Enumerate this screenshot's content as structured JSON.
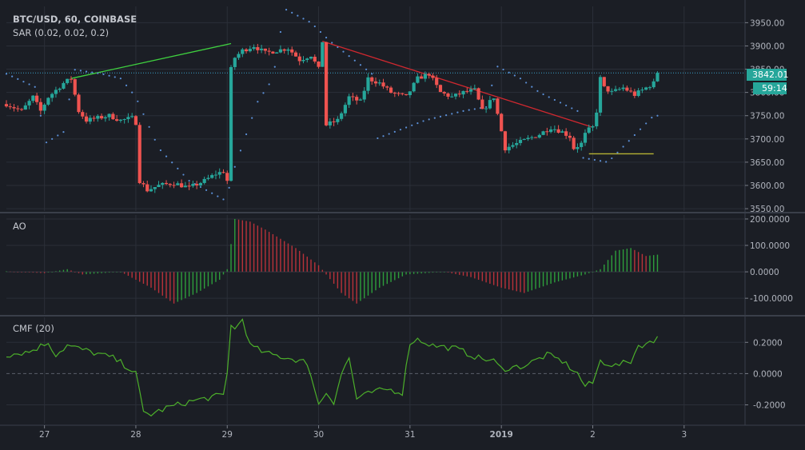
{
  "header": {
    "symbol": "BTC/USD, 60, COINBASE",
    "sar_label": "SAR (0.02, 0.02, 0.2)",
    "ao_label": "AO",
    "cmf_label": "CMF (20)"
  },
  "price_axis": {
    "ticks": [
      {
        "value": 3950,
        "label": "3950.00"
      },
      {
        "value": 3900,
        "label": "3900.00"
      },
      {
        "value": 3850,
        "label": "3850.00"
      },
      {
        "value": 3800,
        "label": "3800.00"
      },
      {
        "value": 3750,
        "label": "3750.00"
      },
      {
        "value": 3700,
        "label": "3700.00"
      },
      {
        "value": 3650,
        "label": "3650.00"
      },
      {
        "value": 3600,
        "label": "3600.00"
      },
      {
        "value": 3550,
        "label": "3550.00"
      }
    ],
    "current_price_label": "3842.01",
    "countdown_label": "59:14"
  },
  "ao_axis": {
    "ticks": [
      {
        "value": 200,
        "label": "200.0000"
      },
      {
        "value": 100,
        "label": "100.0000"
      },
      {
        "value": 0,
        "label": "0.0000"
      },
      {
        "value": -100,
        "label": "-100.0000"
      }
    ]
  },
  "cmf_axis": {
    "ticks": [
      {
        "value": 0.2,
        "label": "0.2000"
      },
      {
        "value": 0,
        "label": "0.0000"
      },
      {
        "value": -0.2,
        "label": "-0.2000"
      }
    ]
  },
  "time_axis": {
    "ticks": [
      {
        "hour": 0,
        "label": "27"
      },
      {
        "hour": 24,
        "label": "28"
      },
      {
        "hour": 48,
        "label": "29"
      },
      {
        "hour": 72,
        "label": "30"
      },
      {
        "hour": 96,
        "label": "31"
      },
      {
        "hour": 120,
        "label": "2019"
      },
      {
        "hour": 144,
        "label": "2"
      },
      {
        "hour": 168,
        "label": "3"
      }
    ]
  },
  "colors": {
    "background": "#1b1e25",
    "grid": "#2b2f38",
    "up": "#26a69a",
    "down": "#ef5350",
    "sar": "#5b8fd6",
    "trend_up": "#3fd13f",
    "trend_down": "#d0282f",
    "support": "#b5b234",
    "cmf": "#4caf2a",
    "price_line": "#3aa0c8",
    "price_badge": "#26a69a"
  },
  "chart_data": {
    "type": "candlestick",
    "interval_minutes": 60,
    "x_unit": "hours since 27 00:00",
    "x_range": [
      -10,
      184
    ],
    "price_range": [
      3545,
      3985
    ],
    "ao_range": [
      -160,
      215
    ],
    "cmf_range": [
      -0.32,
      0.36
    ],
    "anchors": [
      [
        -10,
        3775
      ],
      [
        -6,
        3760
      ],
      [
        -3,
        3790
      ],
      [
        -1,
        3760
      ],
      [
        1,
        3790
      ],
      [
        3,
        3805
      ],
      [
        5,
        3820
      ],
      [
        7,
        3830
      ],
      [
        9,
        3760
      ],
      [
        11,
        3740
      ],
      [
        14,
        3745
      ],
      [
        17,
        3750
      ],
      [
        20,
        3740
      ],
      [
        23,
        3745
      ],
      [
        24,
        3735
      ],
      [
        25,
        3610
      ],
      [
        27,
        3590
      ],
      [
        30,
        3600
      ],
      [
        34,
        3605
      ],
      [
        38,
        3595
      ],
      [
        42,
        3610
      ],
      [
        45,
        3625
      ],
      [
        47,
        3630
      ],
      [
        48,
        3610
      ],
      [
        49,
        3850
      ],
      [
        50,
        3875
      ],
      [
        52,
        3890
      ],
      [
        55,
        3900
      ],
      [
        58,
        3885
      ],
      [
        61,
        3890
      ],
      [
        64,
        3895
      ],
      [
        67,
        3870
      ],
      [
        70,
        3880
      ],
      [
        72,
        3850
      ],
      [
        73,
        3910
      ],
      [
        74,
        3730
      ],
      [
        77,
        3740
      ],
      [
        80,
        3790
      ],
      [
        83,
        3780
      ],
      [
        85,
        3830
      ],
      [
        88,
        3820
      ],
      [
        91,
        3800
      ],
      [
        95,
        3790
      ],
      [
        98,
        3830
      ],
      [
        101,
        3840
      ],
      [
        104,
        3800
      ],
      [
        107,
        3790
      ],
      [
        110,
        3800
      ],
      [
        113,
        3805
      ],
      [
        115,
        3760
      ],
      [
        118,
        3790
      ],
      [
        121,
        3680
      ],
      [
        124,
        3690
      ],
      [
        127,
        3700
      ],
      [
        130,
        3710
      ],
      [
        133,
        3725
      ],
      [
        136,
        3715
      ],
      [
        138,
        3705
      ],
      [
        139,
        3680
      ],
      [
        141,
        3690
      ],
      [
        142,
        3710
      ],
      [
        143,
        3720
      ],
      [
        144,
        3725
      ],
      [
        145,
        3760
      ],
      [
        146,
        3830
      ],
      [
        147,
        3810
      ],
      [
        149,
        3800
      ],
      [
        152,
        3810
      ],
      [
        155,
        3795
      ],
      [
        157,
        3805
      ],
      [
        159,
        3815
      ],
      [
        160,
        3820
      ],
      [
        161,
        3842
      ]
    ],
    "sar_anchors": [
      [
        -10,
        3840
      ],
      [
        -2,
        3810
      ],
      [
        0,
        3690
      ],
      [
        6,
        3720
      ],
      [
        7,
        3850
      ],
      [
        15,
        3840
      ],
      [
        20,
        3830
      ],
      [
        24,
        3790
      ],
      [
        30,
        3680
      ],
      [
        38,
        3610
      ],
      [
        47,
        3570
      ],
      [
        48,
        3595
      ],
      [
        49,
        3595
      ],
      [
        50,
        3640
      ],
      [
        56,
        3780
      ],
      [
        60,
        3830
      ],
      [
        63,
        3980
      ],
      [
        70,
        3950
      ],
      [
        75,
        3910
      ],
      [
        86,
        3840
      ],
      [
        87,
        3700
      ],
      [
        100,
        3740
      ],
      [
        110,
        3760
      ],
      [
        117,
        3770
      ],
      [
        118,
        3860
      ],
      [
        125,
        3830
      ],
      [
        130,
        3800
      ],
      [
        140,
        3760
      ],
      [
        141,
        3660
      ],
      [
        148,
        3650
      ],
      [
        160,
        3750
      ]
    ],
    "ao_anchors": [
      [
        -10,
        2
      ],
      [
        0,
        -5
      ],
      [
        6,
        10
      ],
      [
        10,
        -10
      ],
      [
        20,
        0
      ],
      [
        28,
        -60
      ],
      [
        34,
        -120
      ],
      [
        40,
        -80
      ],
      [
        46,
        -30
      ],
      [
        48,
        10
      ],
      [
        50,
        200
      ],
      [
        54,
        190
      ],
      [
        58,
        160
      ],
      [
        66,
        90
      ],
      [
        72,
        25
      ],
      [
        78,
        -80
      ],
      [
        82,
        -120
      ],
      [
        88,
        -60
      ],
      [
        95,
        -10
      ],
      [
        105,
        0
      ],
      [
        112,
        -20
      ],
      [
        120,
        -60
      ],
      [
        126,
        -80
      ],
      [
        134,
        -40
      ],
      [
        142,
        -10
      ],
      [
        146,
        10
      ],
      [
        150,
        80
      ],
      [
        154,
        90
      ],
      [
        158,
        60
      ],
      [
        161,
        65
      ]
    ],
    "cmf_anchors": [
      [
        -10,
        0.12
      ],
      [
        -4,
        0.14
      ],
      [
        1,
        0.2
      ],
      [
        3,
        0.12
      ],
      [
        6,
        0.18
      ],
      [
        12,
        0.14
      ],
      [
        18,
        0.1
      ],
      [
        22,
        0.04
      ],
      [
        24,
        0.0
      ],
      [
        26,
        -0.25
      ],
      [
        28,
        -0.26
      ],
      [
        32,
        -0.22
      ],
      [
        38,
        -0.18
      ],
      [
        44,
        -0.15
      ],
      [
        47,
        -0.14
      ],
      [
        48,
        0.0
      ],
      [
        49,
        0.32
      ],
      [
        50,
        0.28
      ],
      [
        52,
        0.35
      ],
      [
        54,
        0.18
      ],
      [
        58,
        0.13
      ],
      [
        64,
        0.1
      ],
      [
        68,
        0.08
      ],
      [
        70,
        0.0
      ],
      [
        72,
        -0.2
      ],
      [
        74,
        -0.12
      ],
      [
        76,
        -0.18
      ],
      [
        78,
        0.0
      ],
      [
        80,
        0.1
      ],
      [
        82,
        -0.16
      ],
      [
        86,
        -0.12
      ],
      [
        90,
        -0.1
      ],
      [
        94,
        -0.12
      ],
      [
        96,
        0.2
      ],
      [
        98,
        0.22
      ],
      [
        102,
        0.18
      ],
      [
        108,
        0.16
      ],
      [
        114,
        0.1
      ],
      [
        118,
        0.08
      ],
      [
        120,
        0.03
      ],
      [
        126,
        0.05
      ],
      [
        132,
        0.12
      ],
      [
        136,
        0.08
      ],
      [
        140,
        0.0
      ],
      [
        142,
        -0.08
      ],
      [
        144,
        -0.06
      ],
      [
        146,
        0.08
      ],
      [
        150,
        0.05
      ],
      [
        154,
        0.08
      ],
      [
        156,
        0.18
      ],
      [
        160,
        0.2
      ],
      [
        161,
        0.25
      ]
    ],
    "trendlines": [
      {
        "kind": "up",
        "from": [
          7,
          3830
        ],
        "to": [
          49,
          3905
        ]
      },
      {
        "kind": "down",
        "from": [
          73,
          3910
        ],
        "to": [
          144,
          3725
        ]
      },
      {
        "kind": "support",
        "from": [
          143,
          3668
        ],
        "to": [
          160,
          3668
        ]
      }
    ],
    "current_price": 3842.01
  }
}
